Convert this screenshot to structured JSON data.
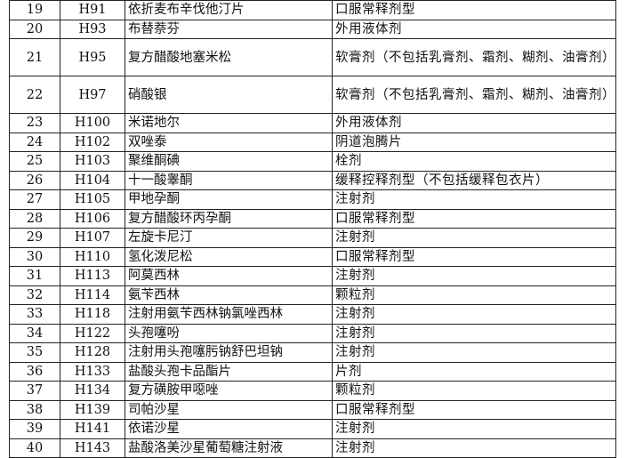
{
  "rows": [
    {
      "no": "19",
      "code": "H91",
      "name": "依折麦布辛伐他汀片",
      "form": "口服常释剂型"
    },
    {
      "no": "20",
      "code": "H93",
      "name": "布替萘芬",
      "form": "外用液体剂"
    },
    {
      "no": "21",
      "code": "H95",
      "name": "复方醋酸地塞米松",
      "form": "软膏剂（不包括乳膏剂、霜剂、糊剂、油膏剂）"
    },
    {
      "no": "22",
      "code": "H97",
      "name": "硝酸银",
      "form": "软膏剂（不包括乳膏剂、霜剂、糊剂、油膏剂）"
    },
    {
      "no": "23",
      "code": "H100",
      "name": "米诺地尔",
      "form": "外用液体剂"
    },
    {
      "no": "24",
      "code": "H102",
      "name": "双唑泰",
      "form": "阴道泡腾片"
    },
    {
      "no": "25",
      "code": "H103",
      "name": "聚维酮碘",
      "form": "栓剂"
    },
    {
      "no": "26",
      "code": "H104",
      "name": "十一酸睾酮",
      "form": "缓释控释剂型（不包括缓释包衣片）"
    },
    {
      "no": "27",
      "code": "H105",
      "name": "甲地孕酮",
      "form": "注射剂"
    },
    {
      "no": "28",
      "code": "H106",
      "name": "复方醋酸环丙孕酮",
      "form": "口服常释剂型"
    },
    {
      "no": "29",
      "code": "H107",
      "name": "左旋卡尼汀",
      "form": "注射剂"
    },
    {
      "no": "30",
      "code": "H110",
      "name": "氢化泼尼松",
      "form": "口服常释剂型"
    },
    {
      "no": "31",
      "code": "H113",
      "name": "阿莫西林",
      "form": "注射剂"
    },
    {
      "no": "32",
      "code": "H114",
      "name": "氨苄西林",
      "form": "颗粒剂"
    },
    {
      "no": "33",
      "code": "H118",
      "name": "注射用氨苄西林钠氯唑西林",
      "form": "注射剂"
    },
    {
      "no": "34",
      "code": "H122",
      "name": "头孢噻吩",
      "form": "注射剂"
    },
    {
      "no": "35",
      "code": "H128",
      "name": "注射用头孢噻肟钠舒巴坦钠",
      "form": "注射剂"
    },
    {
      "no": "36",
      "code": "H133",
      "name": "盐酸头孢卡品酯片",
      "form": "片剂"
    },
    {
      "no": "37",
      "code": "H134",
      "name": "复方磺胺甲噁唑",
      "form": "颗粒剂"
    },
    {
      "no": "38",
      "code": "H139",
      "name": "司帕沙星",
      "form": "口服常释剂型"
    },
    {
      "no": "39",
      "code": "H141",
      "name": "依诺沙星",
      "form": "注射剂"
    },
    {
      "no": "40",
      "code": "H143",
      "name": "盐酸洛美沙星葡萄糖注射液",
      "form": "注射剂"
    }
  ]
}
